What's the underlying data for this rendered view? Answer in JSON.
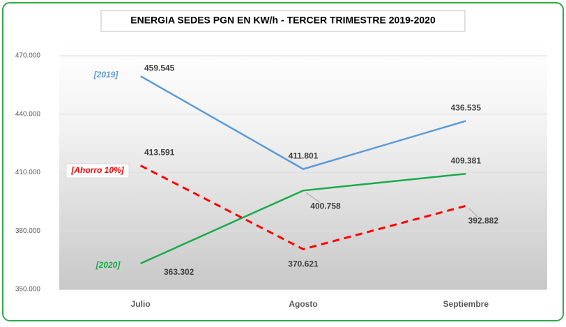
{
  "chart_data": {
    "type": "line",
    "title": "ENERGIA SEDES PGN EN KW/h - TERCER TRIMESTRE 2019-2020",
    "categories": [
      "Julio",
      "Agosto",
      "Septiembre"
    ],
    "series": [
      {
        "name": "[2019]",
        "color": "#5b9bd5",
        "dashed": false,
        "values": [
          459545,
          411801,
          436535
        ],
        "value_labels": [
          "459.545",
          "411.801",
          "436.535"
        ]
      },
      {
        "name": "[2020]",
        "color": "#1aaa4a",
        "dashed": false,
        "values": [
          363302,
          400758,
          409381
        ],
        "value_labels": [
          "363.302",
          "400.758",
          "409.381"
        ]
      },
      {
        "name": "[Ahorro 10%]",
        "color": "#ff0000",
        "dashed": true,
        "values": [
          413591,
          370621,
          392882
        ],
        "value_labels": [
          "413.591",
          "370.621",
          "392.882"
        ]
      }
    ],
    "ylim": [
      350000,
      470000
    ],
    "yticks": [
      {
        "value": 350000,
        "label": "350.000"
      },
      {
        "value": 380000,
        "label": "380.000"
      },
      {
        "value": 410000,
        "label": "410.000"
      },
      {
        "value": 440000,
        "label": "440.000"
      },
      {
        "value": 470000,
        "label": "470.000"
      }
    ],
    "grid": true
  }
}
